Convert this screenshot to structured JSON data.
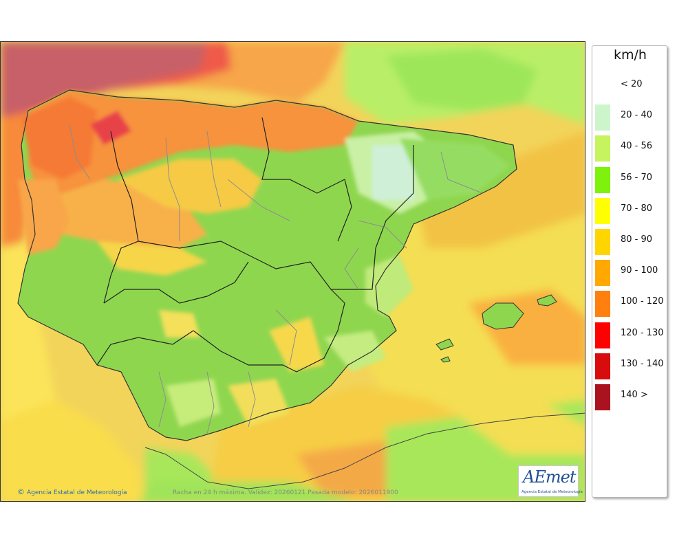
{
  "map": {
    "footer_credit": "Agencia Estatal de Meteorología",
    "footer_credit_symbol": "©",
    "footer_validity": "Racha en 24 h máxima. Validez: 20260121 Pasada modelo: 2026011900",
    "logo_text": "AEmet",
    "logo_subtext": "Agencia Estatal de Meteorología"
  },
  "legend": {
    "unit": "km/h",
    "items": [
      {
        "label": "< 20",
        "color": "#ffffff"
      },
      {
        "label": "20 - 40",
        "color": "#ccf5cc"
      },
      {
        "label": "40 - 56",
        "color": "#c5f45e"
      },
      {
        "label": "56 - 70",
        "color": "#7ef20d"
      },
      {
        "label": "70 - 80",
        "color": "#ffff00"
      },
      {
        "label": "80 - 90",
        "color": "#ffd500"
      },
      {
        "label": "90 - 100",
        "color": "#ffa800"
      },
      {
        "label": "100 - 120",
        "color": "#ff7f0f"
      },
      {
        "label": "120 - 130",
        "color": "#ff0000"
      },
      {
        "label": "130 - 140",
        "color": "#d80c0c"
      },
      {
        "label": "140 >",
        "color": "#a9121e"
      }
    ]
  }
}
